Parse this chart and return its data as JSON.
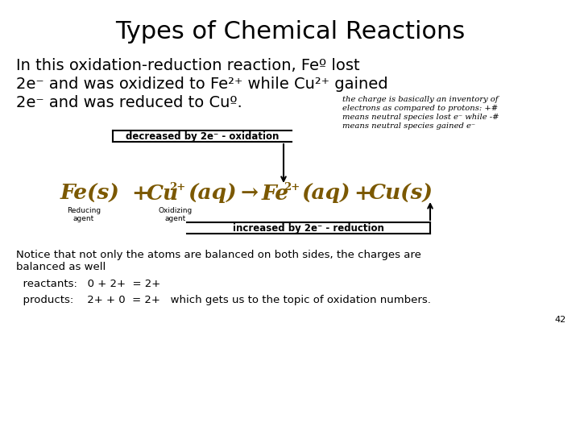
{
  "title": "Types of Chemical Reactions",
  "title_fontsize": 22,
  "bg_color": "#ffffff",
  "body_text_color": "#000000",
  "gold_color": "#7B5800",
  "intro_line1": "In this oxidation-reduction reaction, Feº lost",
  "intro_line2": "2e⁻ and was oxidized to Fe²⁺ while Cu²⁺ gained",
  "intro_line3": "2e⁻ and was reduced to Cuº.",
  "side_note_line1": "the charge is basically an inventory of",
  "side_note_line2": "electrons as compared to protons: +#",
  "side_note_line3": "means neutral species lost e⁻ while -#",
  "side_note_line4": "means neutral species gained e⁻",
  "decreased_label": "decreased by 2e⁻ - oxidation",
  "increased_label": "increased by 2e⁻ - reduction",
  "reducing_agent": "Reducing\nagent",
  "oxidizing_agent": "Oxidizing\nagent",
  "notice_text": "Notice that not only the atoms are balanced on both sides, the charges are\nbalanced as well",
  "reactants_line": "  reactants:   0 + 2+  = 2+",
  "products_line": "  products:    2+ + 0  = 2+   which gets us to the topic of oxidation numbers.",
  "page_number": "42",
  "intro_fs": 14,
  "note_fs": 7.2,
  "eq_fs": 19,
  "eq_super_fs": 9.5,
  "label_fs": 8.5,
  "agent_fs": 6.5,
  "notice_fs": 9.5
}
